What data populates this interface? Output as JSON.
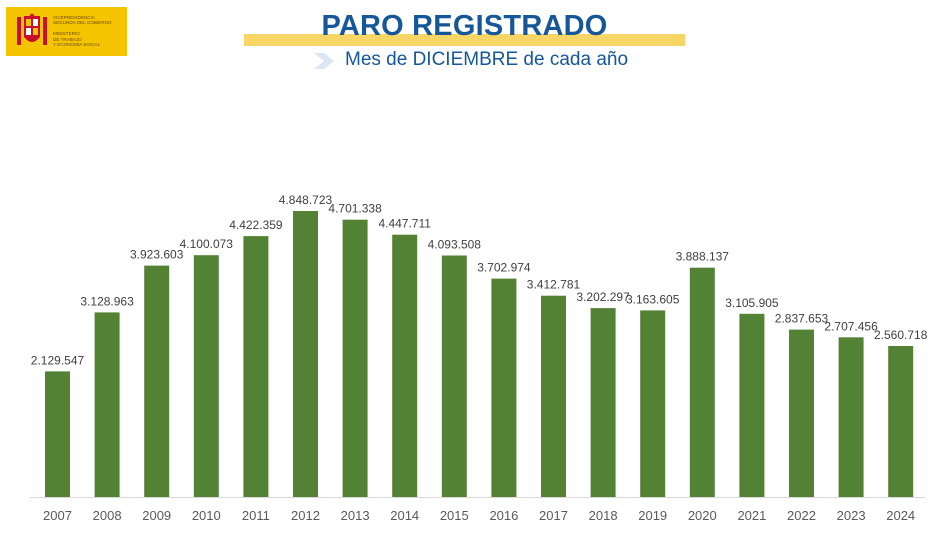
{
  "header": {
    "logo_lines": [
      "VICEPRESIDENCIA",
      "SEGUNDA DEL GOBIERNO",
      "MINISTERIO",
      "DE TRABAJO",
      "Y ECONOMÍA SOCIAL"
    ],
    "title": "PARO REGISTRADO",
    "subtitle": "Mes de DICIEMBRE de cada año"
  },
  "colors": {
    "bar": "#548235",
    "title": "#16579a",
    "title_band": "#f8d665",
    "logo_bg": "#f5c400"
  },
  "icons": {
    "logo": "spain-coat-of-arms-icon",
    "subtitle_marker": "chevron-right-icon"
  },
  "chart_data": {
    "type": "bar",
    "title": "PARO REGISTRADO",
    "subtitle": "Mes de DICIEMBRE de cada año",
    "xlabel": "",
    "ylabel": "",
    "categories": [
      "2007",
      "2008",
      "2009",
      "2010",
      "2011",
      "2012",
      "2013",
      "2014",
      "2015",
      "2016",
      "2017",
      "2018",
      "2019",
      "2020",
      "2021",
      "2022",
      "2023",
      "2024"
    ],
    "values": [
      2129547,
      3128963,
      3923603,
      4100073,
      4422359,
      4848723,
      4701338,
      4447711,
      4093508,
      3702974,
      3412781,
      3202297,
      3163605,
      3888137,
      3105905,
      2837653,
      2707456,
      2560718
    ],
    "labels": [
      "2.129.547",
      "3.128.963",
      "3.923.603",
      "4.100.073",
      "4.422.359",
      "4.848.723",
      "4.701.338",
      "4.447.711",
      "4.093.508",
      "3.702.974",
      "3.412.781",
      "3.202.297",
      "3.163.605",
      "3.888.137",
      "3.105.905",
      "2.837.653",
      "2.707.456",
      "2.560.718"
    ],
    "ylim": [
      0,
      4848723
    ],
    "grid": false,
    "legend": "none"
  }
}
